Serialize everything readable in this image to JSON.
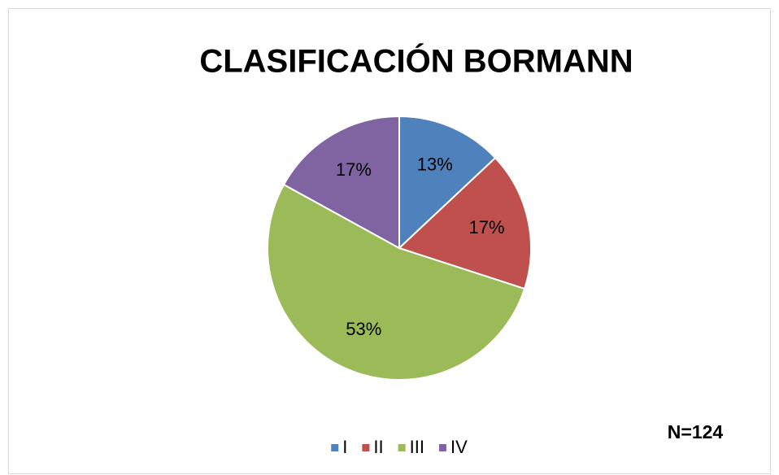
{
  "chart_data": {
    "type": "pie",
    "title": "CLASIFICACIÓN BORMANN",
    "categories": [
      "I",
      "II",
      "III",
      "IV"
    ],
    "values": [
      13,
      17,
      53,
      17
    ],
    "value_labels": [
      "13%",
      "17%",
      "53%",
      "17%"
    ],
    "colors": [
      "#4f81bd",
      "#c0504d",
      "#9bbb59",
      "#8064a2"
    ],
    "annotation": "N=124",
    "legend": "bottom"
  }
}
